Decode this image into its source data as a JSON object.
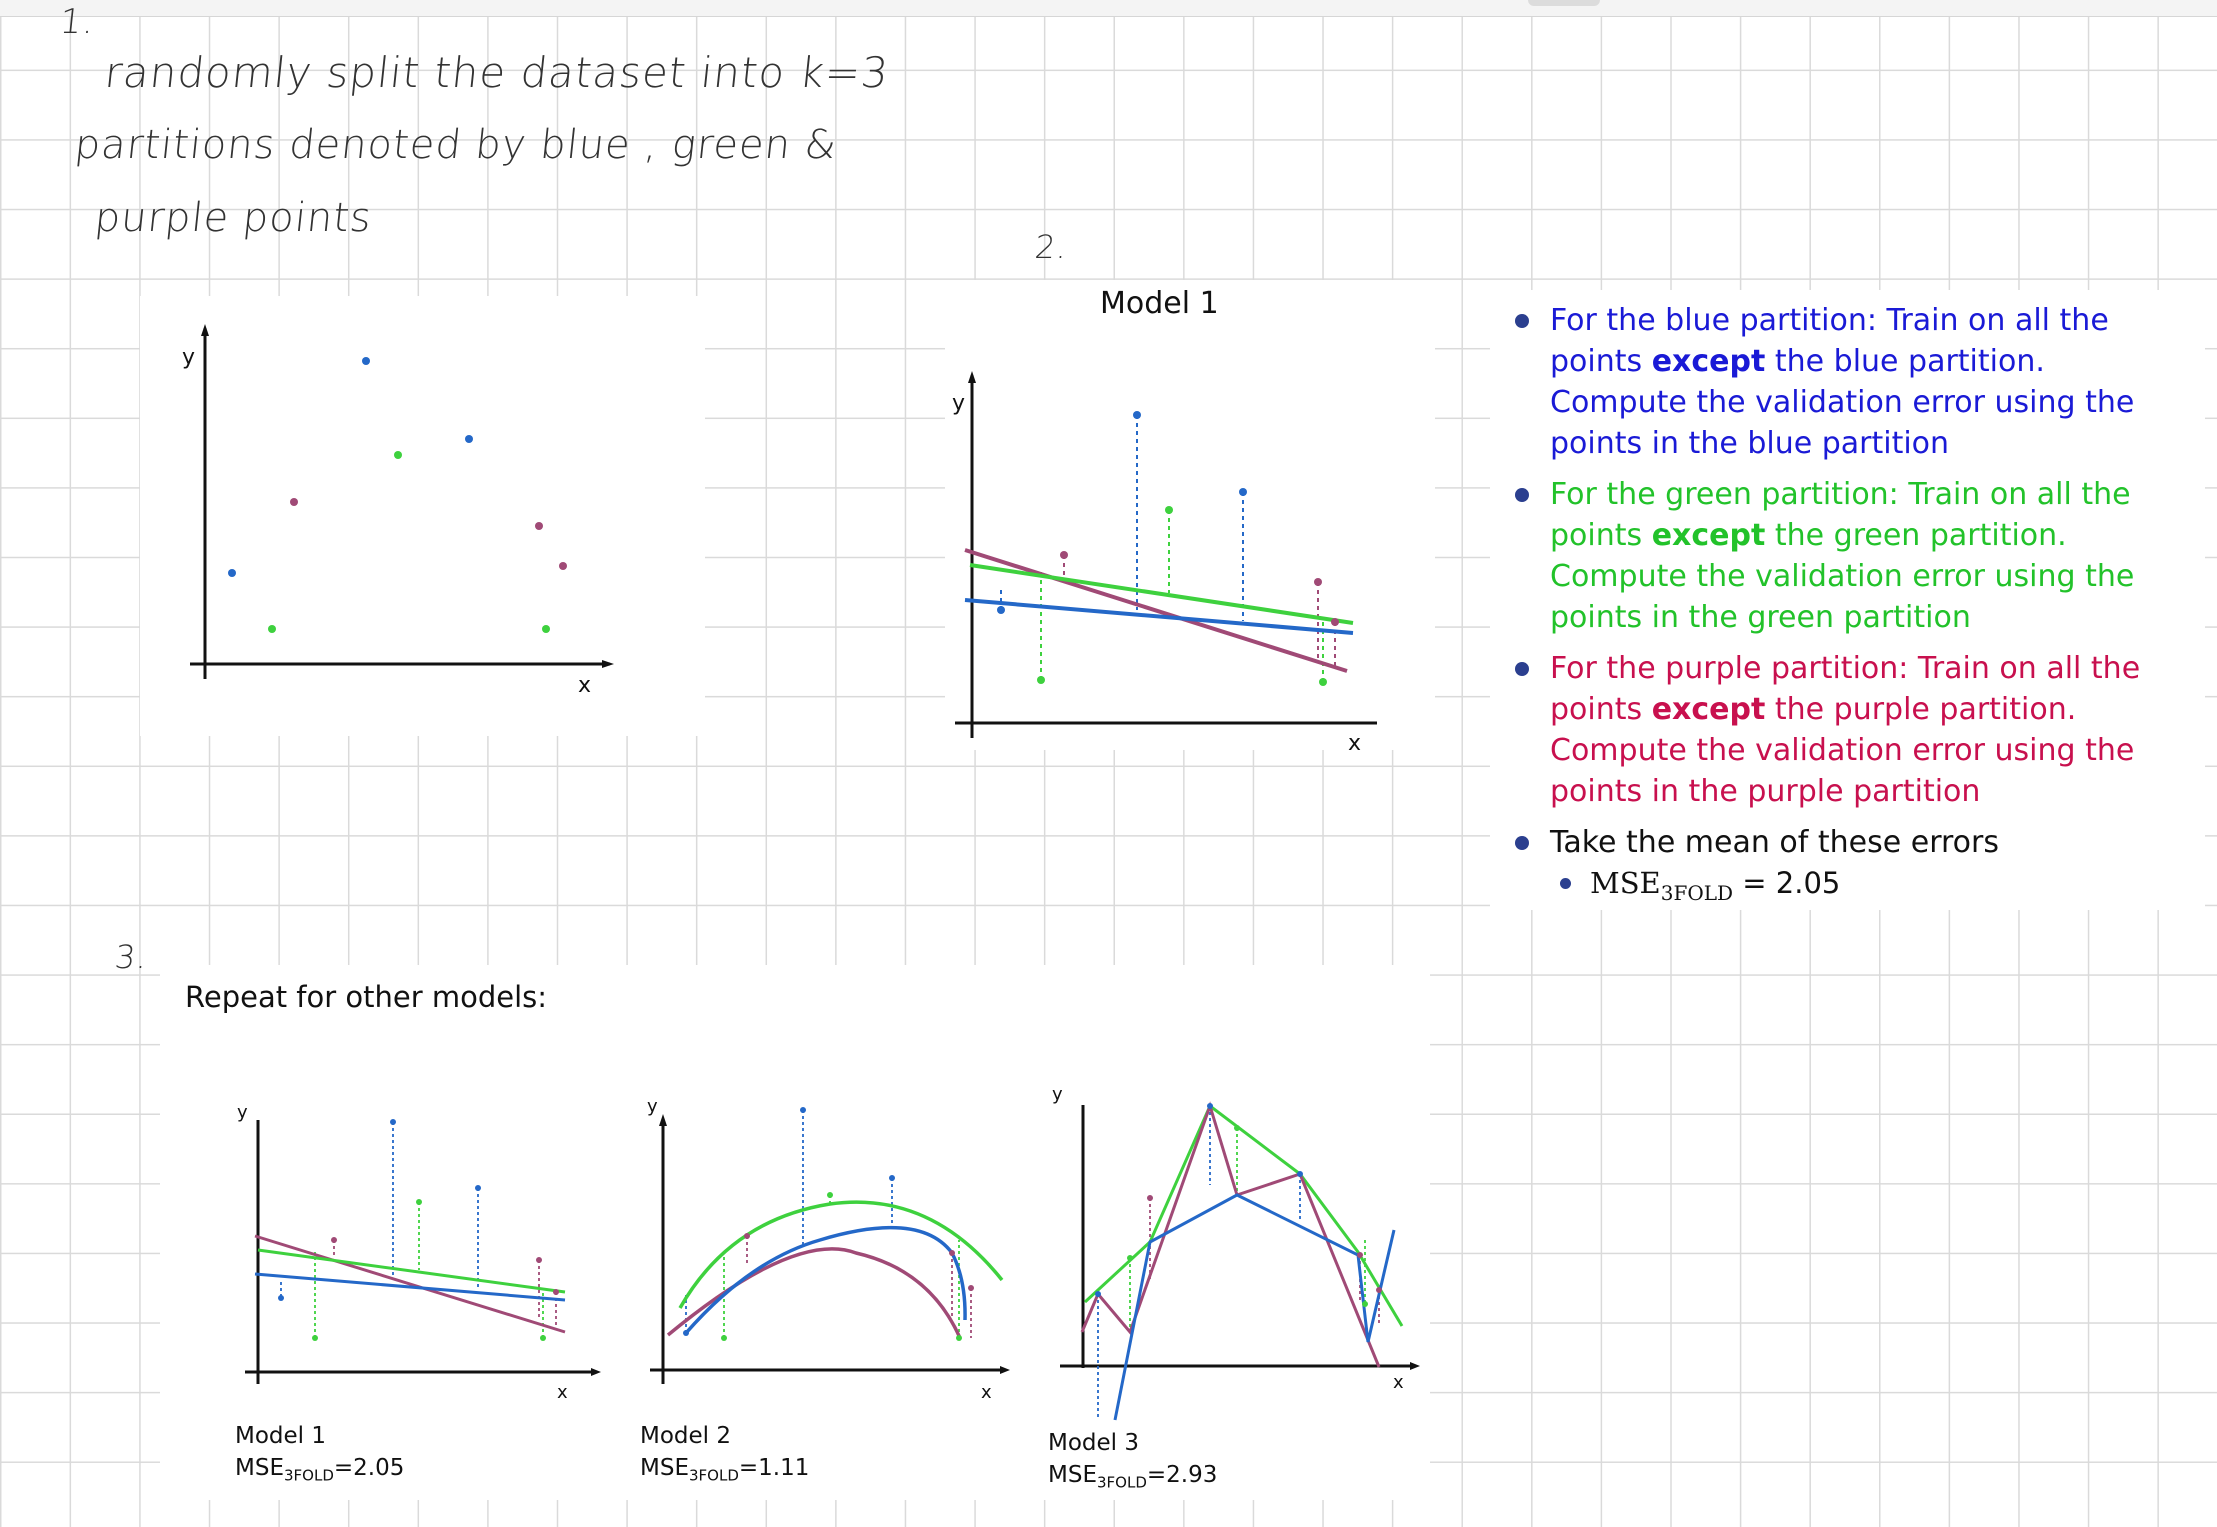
{
  "notes": {
    "step1_number": "1.",
    "step1_text_line1": "randomly split the dataset into k=3",
    "step1_text_line2": "partitions denoted by blue , green &",
    "step1_text_line3": "purple points",
    "step2_number": "2.",
    "step3_number": "3."
  },
  "scatter_panel": {
    "ylabel": "y",
    "xlabel": "x"
  },
  "model1_panel": {
    "title": "Model 1",
    "ylabel": "y",
    "xlabel": "x"
  },
  "bullets": {
    "blue": {
      "pre": "For the blue partition: Train on all the points ",
      "bold": "except",
      "post": " the blue partition. Compute the validation error using the points in the blue partition",
      "color": "#1a1ad6"
    },
    "green": {
      "pre": "For the green partition: Train on all the points ",
      "bold": "except",
      "post": " the green partition. Compute the validation error using the points in the green partition",
      "color": "#22c22a"
    },
    "purple": {
      "pre": "For the purple partition: Train on all the points ",
      "bold": "except",
      "post": " the purple partition. Compute the validation error using the points in the purple partition",
      "color": "#c8104e"
    },
    "mean": {
      "text": "Take the mean of these errors",
      "color": "#111111"
    },
    "mse": {
      "prefix": "MSE",
      "sub": "3FOLD",
      "eq": " = 2.05"
    }
  },
  "repeat_title": "Repeat for other models:",
  "small_axes": {
    "ylabel": "y",
    "xlabel": "x"
  },
  "models": [
    {
      "name": "Model 1",
      "mse_prefix": "MSE",
      "mse_sub": "3FOLD",
      "mse_value": "=2.05"
    },
    {
      "name": "Model 2",
      "mse_prefix": "MSE",
      "mse_sub": "3FOLD",
      "mse_value": "=1.11"
    },
    {
      "name": "Model 3",
      "mse_prefix": "MSE",
      "mse_sub": "3FOLD",
      "mse_value": "=2.93"
    }
  ],
  "colors": {
    "blue": "#2468c8",
    "green": "#3ed13e",
    "purple": "#a04a76",
    "axis": "#111111",
    "bullet_dot": "#2b3f8f"
  }
}
